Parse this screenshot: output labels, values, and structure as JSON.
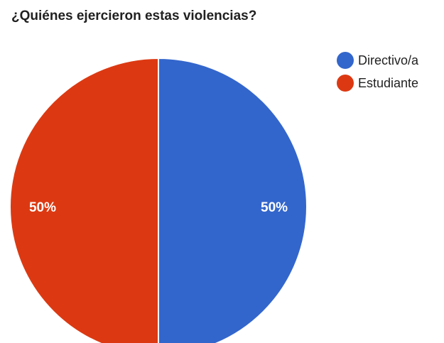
{
  "chart_data": {
    "type": "pie",
    "title": "¿Quiénes ejercieron estas violencias?",
    "categories": [
      "Directivo/a",
      "Estudiante"
    ],
    "values": [
      50,
      50
    ],
    "value_labels": [
      "50%",
      "50%"
    ],
    "colors": [
      "#3366cc",
      "#dc3912"
    ],
    "legend_position": "top-right"
  }
}
